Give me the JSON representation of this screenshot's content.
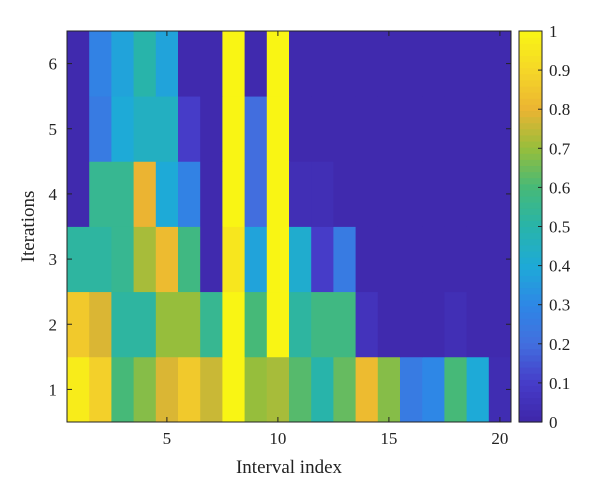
{
  "chart_data": {
    "type": "heatmap",
    "title": "",
    "xlabel": "Interval index",
    "ylabel": "Iterations",
    "x_ticks": [
      "5",
      "10",
      "15",
      "20"
    ],
    "y_ticks": [
      "1",
      "2",
      "3",
      "4",
      "5",
      "6"
    ],
    "colorbar_ticks": [
      "0",
      "0.1",
      "0.2",
      "0.3",
      "0.4",
      "0.5",
      "0.6",
      "0.7",
      "0.8",
      "0.9",
      "1"
    ],
    "x_range": [
      0.5,
      20.5
    ],
    "y_range": [
      0.5,
      6.5
    ],
    "clim": [
      0,
      1
    ],
    "colormap": "parula",
    "columns": 20,
    "rows_bottom_to_top": [
      [
        0.97,
        0.88,
        0.6,
        0.68,
        0.78,
        0.86,
        0.76,
        1.0,
        0.7,
        0.72,
        0.62,
        0.5,
        0.64,
        0.82,
        0.68,
        0.25,
        0.3,
        0.6,
        0.4,
        0.03
      ],
      [
        0.86,
        0.78,
        0.52,
        0.52,
        0.7,
        0.7,
        0.55,
        1.0,
        0.6,
        1.0,
        0.52,
        0.58,
        0.58,
        0.06,
        0.02,
        0.02,
        0.02,
        0.04,
        0.02,
        0.02
      ],
      [
        0.52,
        0.52,
        0.55,
        0.72,
        0.82,
        0.58,
        0.02,
        0.95,
        0.38,
        1.0,
        0.42,
        0.1,
        0.25,
        0.02,
        0.02,
        0.02,
        0.02,
        0.02,
        0.02,
        0.02
      ],
      [
        0.02,
        0.55,
        0.55,
        0.8,
        0.4,
        0.28,
        0.02,
        1.0,
        0.2,
        1.0,
        0.04,
        0.04,
        0.02,
        0.02,
        0.02,
        0.02,
        0.02,
        0.02,
        0.02,
        0.02
      ],
      [
        0.02,
        0.25,
        0.4,
        0.45,
        0.45,
        0.1,
        0.02,
        1.0,
        0.2,
        1.0,
        0.02,
        0.02,
        0.02,
        0.02,
        0.02,
        0.02,
        0.02,
        0.02,
        0.02,
        0.02
      ],
      [
        0.02,
        0.28,
        0.38,
        0.5,
        0.38,
        0.02,
        0.02,
        1.0,
        0.02,
        1.0,
        0.02,
        0.02,
        0.02,
        0.02,
        0.02,
        0.02,
        0.02,
        0.02,
        0.02,
        0.02
      ]
    ]
  }
}
